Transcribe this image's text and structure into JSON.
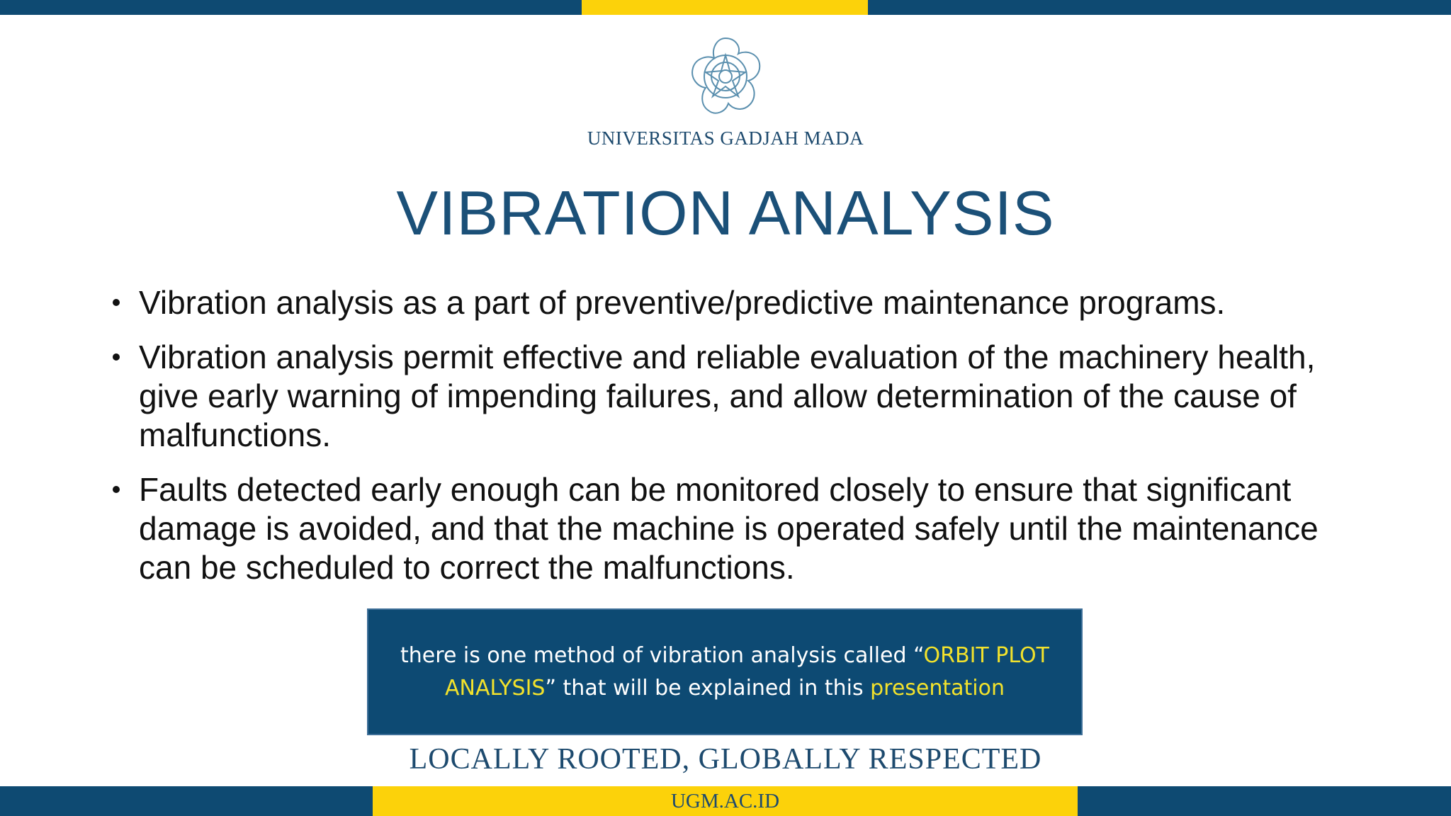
{
  "header": {
    "university": "UNIVERSITAS GADJAH MADA",
    "title": "VIBRATION ANALYSIS"
  },
  "bullets": [
    "Vibration analysis as a part of preventive/predictive maintenance programs.",
    "Vibration analysis permit effective and reliable evaluation of the machinery health, give early warning of impending failures, and allow determination of the cause of malfunctions.",
    "Faults detected early enough can be monitored closely to ensure that significant damage is avoided, and that the machine is operated safely until the maintenance can be scheduled to correct the malfunctions."
  ],
  "callout": [
    {
      "text": "there is one method of vibration analysis called “",
      "highlight": false
    },
    {
      "text": "ORBIT PLOT ANALYSIS",
      "highlight": true
    },
    {
      "text": "” that will be explained in this ",
      "highlight": false
    },
    {
      "text": "presentation",
      "highlight": true
    }
  ],
  "footer": {
    "tagline": "LOCALLY ROOTED, GLOBALLY RESPECTED",
    "url": "UGM.AC.ID"
  }
}
